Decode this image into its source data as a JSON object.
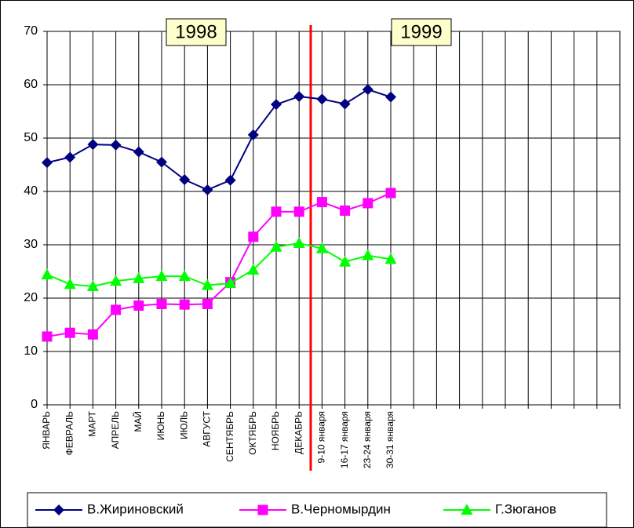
{
  "chart_data": {
    "type": "line",
    "categories": [
      "ЯНВАРЬ",
      "ФЕВРАЛЬ",
      "МАРТ",
      "АПРЕЛЬ",
      "МАЙ",
      "ИЮНЬ",
      "ИЮЛЬ",
      "АВГУСТ",
      "СЕНТЯБРЬ",
      "ОКТЯБРЬ",
      "НОЯБРЬ",
      "ДЕКАБРЬ",
      "9-10 января",
      "16-17 января",
      "23-24 января",
      "30-31 января",
      null,
      null,
      null,
      null,
      null,
      null,
      null,
      null,
      null,
      null
    ],
    "series": [
      {
        "name": "В.Жириновский",
        "color": "#000080",
        "marker": "diamond",
        "values": [
          45.4,
          46.4,
          48.8,
          48.7,
          47.4,
          45.5,
          42.2,
          40.3,
          42.1,
          50.6,
          56.3,
          57.8,
          57.3,
          56.4,
          59.1,
          57.7,
          null,
          null,
          null,
          null,
          null,
          null,
          null,
          null,
          null,
          null
        ]
      },
      {
        "name": "В.Черномырдин",
        "color": "#ff00ff",
        "marker": "square",
        "values": [
          12.8,
          13.5,
          13.2,
          17.8,
          18.6,
          18.9,
          18.8,
          18.9,
          23.0,
          31.5,
          36.2,
          36.2,
          38.0,
          36.4,
          37.8,
          39.7,
          null,
          null,
          null,
          null,
          null,
          null,
          null,
          null,
          null,
          null
        ]
      },
      {
        "name": "Г.Зюганов",
        "color": "#00ff00",
        "marker": "triangle",
        "values": [
          24.4,
          22.6,
          22.2,
          23.2,
          23.7,
          24.1,
          24.1,
          22.4,
          22.8,
          25.3,
          29.6,
          30.3,
          29.3,
          26.8,
          28.0,
          27.3,
          null,
          null,
          null,
          null,
          null,
          null,
          null,
          null,
          null,
          null
        ]
      }
    ],
    "annotations": [
      "1998",
      "1999"
    ],
    "ylim": [
      0,
      70
    ],
    "yticks": [
      0,
      10,
      20,
      30,
      40,
      50,
      60,
      70
    ],
    "grid": true,
    "legend": "bottom"
  }
}
